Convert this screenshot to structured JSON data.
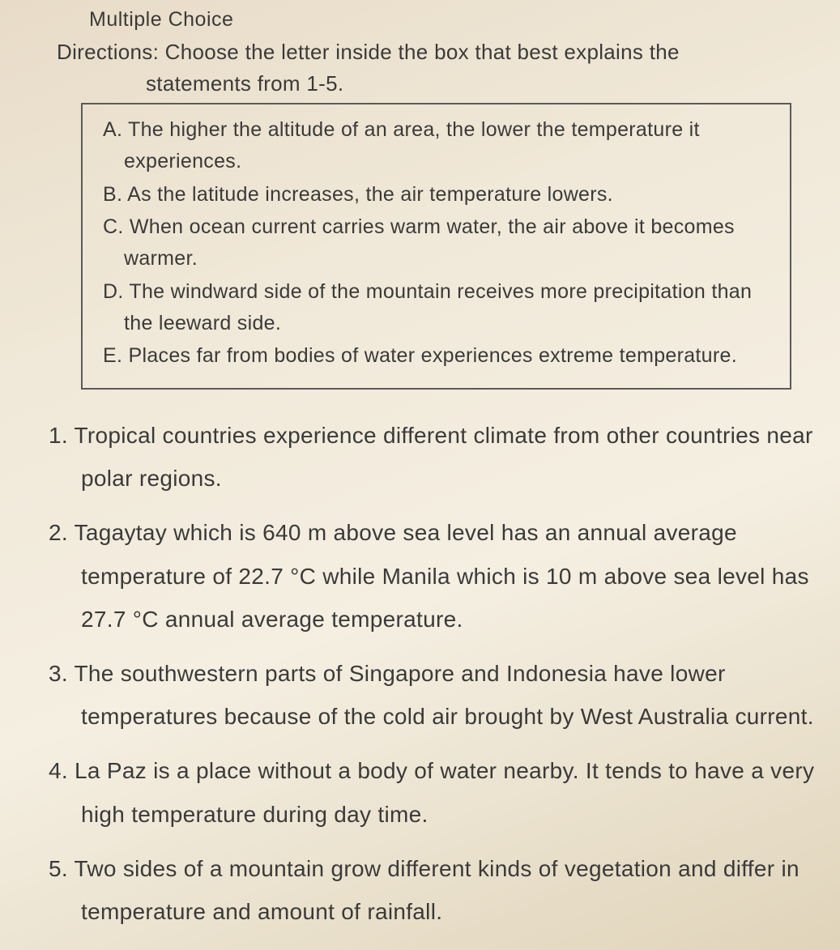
{
  "header": {
    "section_type": "Multiple Choice"
  },
  "directions": {
    "line1": "Directions: Choose the letter inside the box that best explains the",
    "line2": "statements from 1-5."
  },
  "choices": [
    {
      "letter": "A.",
      "text": "The higher the altitude of an area, the lower the temperature it experiences."
    },
    {
      "letter": "B.",
      "text": "As the latitude increases, the air temperature lowers."
    },
    {
      "letter": "C.",
      "text": "When ocean current carries warm water, the air above it becomes warmer."
    },
    {
      "letter": "D.",
      "text": "The windward side of the mountain receives more precipitation than the leeward side."
    },
    {
      "letter": "E.",
      "text": "Places far from bodies of water experiences extreme temperature."
    }
  ],
  "questions": [
    {
      "num": "1.",
      "text": "Tropical countries experience different climate from other countries near polar regions."
    },
    {
      "num": "2.",
      "text": "Tagaytay which is 640 m above sea level has an annual average temperature of 22.7 °C while Manila which is 10 m above sea level has 27.7 °C annual average temperature."
    },
    {
      "num": "3.",
      "text": "The southwestern parts of Singapore and Indonesia have lower temperatures because of the cold air brought by West Australia current."
    },
    {
      "num": "4.",
      "text": "La Paz is a place without a body of water nearby. It tends to have a very high temperature during day time."
    },
    {
      "num": "5.",
      "text": "Two sides of a mountain grow different kinds of vegetation and differ in temperature and amount of rainfall."
    }
  ],
  "styling": {
    "background_gradient": [
      "#e8dcc8",
      "#f0e8d8",
      "#f5efe2",
      "#e0d4ba"
    ],
    "text_color": "#3a3a3a",
    "box_border_color": "#5a5a5a",
    "box_border_width": 2,
    "header_fontsize": 25,
    "directions_fontsize": 26,
    "choice_fontsize": 25,
    "question_fontsize": 28,
    "font_family": "Comic Sans MS"
  }
}
